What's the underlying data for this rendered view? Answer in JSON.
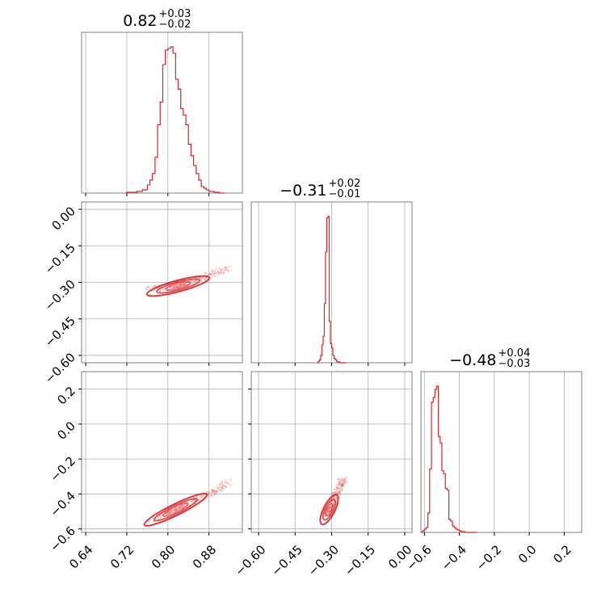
{
  "chart_data": {
    "type": "corner",
    "color": "#d62728",
    "grid": true,
    "titles": [
      {
        "param": 0,
        "value": "0.82",
        "upper": "+0.03",
        "lower": "−0.02"
      },
      {
        "param": 1,
        "value": "−0.31",
        "upper": "+0.02",
        "lower": "−0.01"
      },
      {
        "param": 2,
        "value": "−0.48",
        "upper": "+0.04",
        "lower": "−0.03"
      }
    ],
    "params": [
      {
        "range": [
          0.632,
          0.945
        ],
        "ticks": [
          0.64,
          0.72,
          0.8,
          0.88
        ],
        "tick_labels": [
          "0.64",
          "0.72",
          "0.80",
          "0.88"
        ]
      },
      {
        "range": [
          -0.63,
          0.03
        ],
        "ticks": [
          -0.6,
          -0.45,
          -0.3,
          -0.15,
          0.0
        ],
        "tick_labels": [
          "−0.60",
          "−0.45",
          "−0.30",
          "−0.15",
          "0.00"
        ]
      },
      {
        "range": [
          -0.62,
          0.3
        ],
        "ticks": [
          -0.6,
          -0.4,
          -0.2,
          0.0,
          0.2
        ],
        "tick_labels": [
          "−0.6",
          "−0.4",
          "−0.2",
          "0.0",
          "0.2"
        ]
      }
    ],
    "histograms": [
      {
        "param": 0,
        "bins": [
          0.72,
          0.73,
          0.74,
          0.75,
          0.76,
          0.765,
          0.77,
          0.775,
          0.78,
          0.785,
          0.79,
          0.795,
          0.8,
          0.805,
          0.81,
          0.815,
          0.82,
          0.825,
          0.83,
          0.835,
          0.84,
          0.845,
          0.85,
          0.855,
          0.86,
          0.865,
          0.87,
          0.875,
          0.88,
          0.89,
          0.9,
          0.91
        ],
        "counts": [
          0.005,
          0.005,
          0.01,
          0.02,
          0.05,
          0.08,
          0.12,
          0.22,
          0.42,
          0.56,
          0.79,
          0.88,
          0.89,
          0.9,
          0.86,
          0.7,
          0.64,
          0.52,
          0.48,
          0.42,
          0.3,
          0.23,
          0.17,
          0.12,
          0.08,
          0.04,
          0.03,
          0.02,
          0.01,
          0.005,
          0.0
        ]
      },
      {
        "param": 1,
        "bins": [
          -0.36,
          -0.355,
          -0.35,
          -0.345,
          -0.34,
          -0.335,
          -0.33,
          -0.325,
          -0.32,
          -0.315,
          -0.31,
          -0.305,
          -0.3,
          -0.295,
          -0.29,
          -0.285,
          -0.28,
          -0.275,
          -0.27,
          -0.265,
          -0.26,
          -0.255,
          -0.25,
          -0.24
        ],
        "counts": [
          0.0,
          0.01,
          0.02,
          0.05,
          0.12,
          0.18,
          0.4,
          0.75,
          0.98,
          0.99,
          0.28,
          0.13,
          0.1,
          0.05,
          0.03,
          0.02,
          0.01,
          0.005,
          0.005,
          0.0,
          0.0,
          0.0,
          0.0
        ]
      },
      {
        "param": 2,
        "bins": [
          -0.62,
          -0.61,
          -0.6,
          -0.59,
          -0.58,
          -0.57,
          -0.56,
          -0.55,
          -0.54,
          -0.53,
          -0.52,
          -0.51,
          -0.5,
          -0.49,
          -0.48,
          -0.47,
          -0.46,
          -0.45,
          -0.44,
          -0.43,
          -0.42,
          -0.41,
          -0.4,
          -0.39,
          -0.38,
          -0.37,
          -0.36,
          -0.35,
          -0.34,
          -0.32,
          -0.3
        ],
        "counts": [
          0.0,
          0.01,
          0.02,
          0.03,
          0.12,
          0.39,
          0.8,
          0.83,
          0.88,
          0.9,
          0.59,
          0.55,
          0.38,
          0.36,
          0.27,
          0.26,
          0.08,
          0.07,
          0.04,
          0.03,
          0.02,
          0.015,
          0.01,
          0.005,
          0.005,
          0.0,
          0.0,
          0.0,
          0.0,
          0.0
        ]
      }
    ],
    "pairs": [
      {
        "x_param": 0,
        "y_param": 1,
        "center": [
          0.82,
          -0.315
        ],
        "points": [
          [
            0.76,
            -0.33
          ],
          [
            0.78,
            -0.325
          ],
          [
            0.8,
            -0.32
          ],
          [
            0.82,
            -0.31
          ],
          [
            0.84,
            -0.3
          ],
          [
            0.86,
            -0.285
          ],
          [
            0.88,
            -0.27
          ],
          [
            0.9,
            -0.255
          ],
          [
            0.92,
            -0.24
          ]
        ]
      },
      {
        "x_param": 0,
        "y_param": 2,
        "center": [
          0.815,
          -0.49
        ],
        "points": [
          [
            0.76,
            -0.56
          ],
          [
            0.78,
            -0.53
          ],
          [
            0.8,
            -0.505
          ],
          [
            0.82,
            -0.48
          ],
          [
            0.84,
            -0.455
          ],
          [
            0.86,
            -0.43
          ],
          [
            0.88,
            -0.4
          ],
          [
            0.9,
            -0.37
          ],
          [
            0.92,
            -0.33
          ]
        ]
      },
      {
        "x_param": 1,
        "y_param": 2,
        "center": [
          -0.31,
          -0.49
        ],
        "points": [
          [
            -0.33,
            -0.53
          ],
          [
            -0.32,
            -0.51
          ],
          [
            -0.31,
            -0.49
          ],
          [
            -0.3,
            -0.46
          ],
          [
            -0.29,
            -0.43
          ],
          [
            -0.28,
            -0.4
          ],
          [
            -0.27,
            -0.37
          ],
          [
            -0.26,
            -0.34
          ],
          [
            -0.25,
            -0.31
          ]
        ]
      }
    ]
  }
}
